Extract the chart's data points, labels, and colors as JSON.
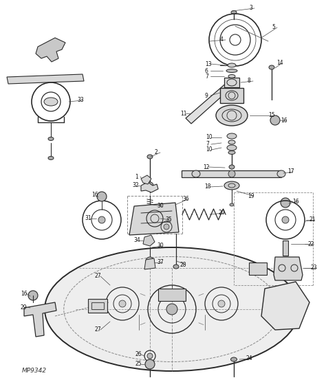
{
  "bg_color": "#ffffff",
  "fig_width": 4.74,
  "fig_height": 5.53,
  "watermark": "MP9342",
  "lc": "#1a1a1a",
  "dc": "#2a2a2a"
}
